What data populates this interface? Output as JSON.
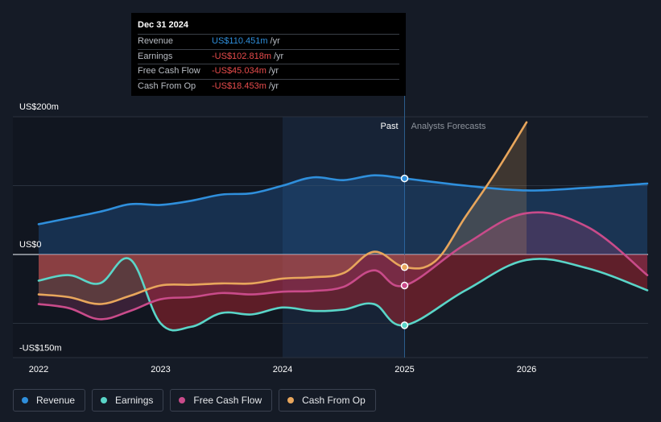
{
  "chart_data": {
    "type": "line",
    "x_range": [
      2021.9,
      2026.99
    ],
    "ylim": [
      -150,
      200
    ],
    "y_ticks": [
      {
        "value": 200,
        "label": "US$200m"
      },
      {
        "value": 0,
        "label": "US$0"
      },
      {
        "value": -150,
        "label": "-US$150m"
      }
    ],
    "x_ticks": [
      {
        "value": 2022,
        "label": "2022"
      },
      {
        "value": 2023,
        "label": "2023"
      },
      {
        "value": 2024,
        "label": "2024"
      },
      {
        "value": 2025,
        "label": "2025"
      },
      {
        "value": 2026,
        "label": "2026"
      }
    ],
    "past_label": "Past",
    "forecast_label": "Analysts Forecasts",
    "highlight_range": [
      2024.0,
      2025.0
    ],
    "series": [
      {
        "name": "Revenue",
        "color": "#2f8fdc",
        "fill": "rgba(40,120,200,0.28)",
        "points": [
          [
            2022.0,
            44
          ],
          [
            2022.5,
            62
          ],
          [
            2022.75,
            73
          ],
          [
            2023.0,
            72
          ],
          [
            2023.25,
            78
          ],
          [
            2023.5,
            87
          ],
          [
            2023.75,
            89
          ],
          [
            2024.0,
            100
          ],
          [
            2024.25,
            112
          ],
          [
            2024.5,
            108
          ],
          [
            2024.75,
            115
          ],
          [
            2025.0,
            110.451
          ],
          [
            2025.5,
            100
          ],
          [
            2026.0,
            93
          ],
          [
            2026.5,
            97
          ],
          [
            2026.99,
            103
          ]
        ]
      },
      {
        "name": "Earnings",
        "color": "#5ad5c8",
        "fill": "rgba(170,35,45,0.5)",
        "points": [
          [
            2022.0,
            -38
          ],
          [
            2022.25,
            -30
          ],
          [
            2022.5,
            -42
          ],
          [
            2022.75,
            -7
          ],
          [
            2023.0,
            -100
          ],
          [
            2023.25,
            -105
          ],
          [
            2023.5,
            -85
          ],
          [
            2023.75,
            -87
          ],
          [
            2024.0,
            -77
          ],
          [
            2024.25,
            -82
          ],
          [
            2024.5,
            -80
          ],
          [
            2024.75,
            -72
          ],
          [
            2025.0,
            -102.818
          ],
          [
            2025.5,
            -52
          ],
          [
            2026.0,
            -8
          ],
          [
            2026.5,
            -20
          ],
          [
            2026.99,
            -52
          ]
        ]
      },
      {
        "name": "Free Cash Flow",
        "color": "#c94b8a",
        "fill": "rgba(200,75,138,0.22)",
        "points": [
          [
            2022.0,
            -72
          ],
          [
            2022.25,
            -78
          ],
          [
            2022.5,
            -94
          ],
          [
            2022.75,
            -82
          ],
          [
            2023.0,
            -65
          ],
          [
            2023.25,
            -62
          ],
          [
            2023.5,
            -56
          ],
          [
            2023.75,
            -58
          ],
          [
            2024.0,
            -54
          ],
          [
            2024.25,
            -53
          ],
          [
            2024.5,
            -47
          ],
          [
            2024.75,
            -23
          ],
          [
            2025.0,
            -45.034
          ],
          [
            2025.5,
            15
          ],
          [
            2026.0,
            60
          ],
          [
            2026.5,
            40
          ],
          [
            2026.99,
            -30
          ]
        ]
      },
      {
        "name": "Cash From Op",
        "color": "#e8a65c",
        "fill": "rgba(232,166,92,0.2)",
        "points": [
          [
            2022.0,
            -58
          ],
          [
            2022.25,
            -62
          ],
          [
            2022.5,
            -72
          ],
          [
            2022.75,
            -60
          ],
          [
            2023.0,
            -45
          ],
          [
            2023.25,
            -44
          ],
          [
            2023.5,
            -42
          ],
          [
            2023.75,
            -42
          ],
          [
            2024.0,
            -35
          ],
          [
            2024.25,
            -33
          ],
          [
            2024.5,
            -27
          ],
          [
            2024.75,
            4
          ],
          [
            2025.0,
            -18.453
          ],
          [
            2025.25,
            -10
          ],
          [
            2025.5,
            55
          ],
          [
            2025.75,
            120
          ],
          [
            2026.0,
            192
          ]
        ]
      }
    ],
    "marker_x": 2025.0
  },
  "tooltip": {
    "date": "Dec 31 2024",
    "rows": [
      {
        "label": "Revenue",
        "value": "US$110.451m",
        "unit": "/yr",
        "color": "#2f8fdc"
      },
      {
        "label": "Earnings",
        "value": "-US$102.818m",
        "unit": "/yr",
        "color": "#e84c4c"
      },
      {
        "label": "Free Cash Flow",
        "value": "-US$45.034m",
        "unit": "/yr",
        "color": "#e84c4c"
      },
      {
        "label": "Cash From Op",
        "value": "-US$18.453m",
        "unit": "/yr",
        "color": "#e84c4c"
      }
    ]
  },
  "legend": [
    {
      "label": "Revenue",
      "color": "#2f8fdc"
    },
    {
      "label": "Earnings",
      "color": "#5ad5c8"
    },
    {
      "label": "Free Cash Flow",
      "color": "#c94b8a"
    },
    {
      "label": "Cash From Op",
      "color": "#e8a65c"
    }
  ]
}
